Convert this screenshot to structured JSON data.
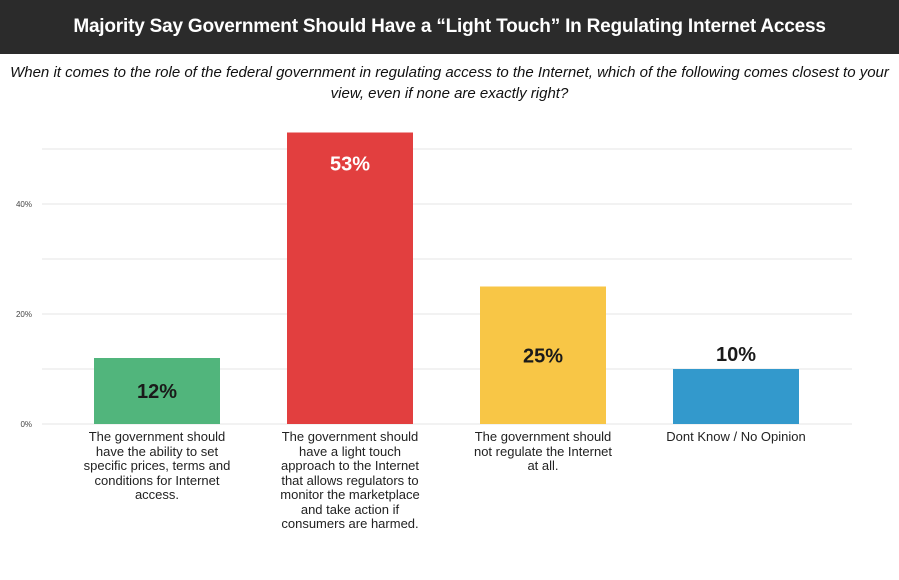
{
  "header": {
    "title": "Majority Say Government Should Have a “Light Touch” In Regulating Internet Access"
  },
  "question": "When it comes to the role of the federal government in regulating access to the Internet, which of the following comes closest to your view, even if none are exactly right?",
  "chart_data": {
    "type": "bar",
    "categories": [
      "The government should have the ability to set specific prices, terms and conditions for Internet access.",
      "The government should have a light touch approach to the Internet that allows regulators to monitor the marketplace and take action if consumers are harmed.",
      "The government should not regulate the Internet at all.",
      "Dont Know / No Opinion"
    ],
    "values": [
      12,
      53,
      25,
      10
    ],
    "value_labels": [
      "12%",
      "53%",
      "25%",
      "10%"
    ],
    "colors": [
      "#51b57c",
      "#e23f3f",
      "#f8c646",
      "#3399cc"
    ],
    "label_colors": [
      "#1a1a1a",
      "#ffffff",
      "#1a1a1a",
      "#1a1a1a"
    ],
    "yticks": [
      0,
      20,
      40
    ],
    "ytick_labels": [
      "0%",
      "20%",
      "40%"
    ],
    "ylim": [
      0,
      55
    ],
    "grid": true
  }
}
